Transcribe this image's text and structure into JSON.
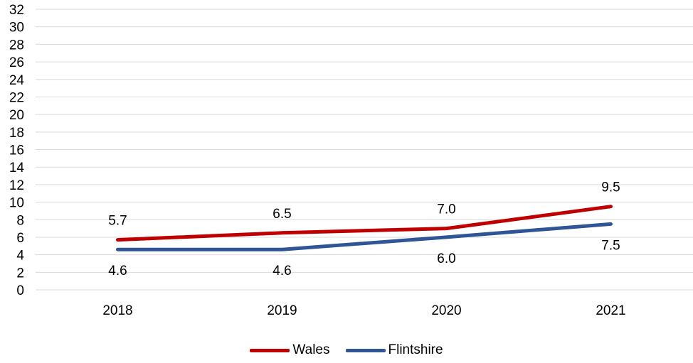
{
  "chart_data": {
    "type": "line",
    "title": "",
    "xlabel": "",
    "ylabel": "",
    "categories": [
      "2018",
      "2019",
      "2020",
      "2021"
    ],
    "ylim": [
      0,
      32
    ],
    "yticks": [
      0,
      2,
      4,
      6,
      8,
      10,
      12,
      14,
      16,
      18,
      20,
      22,
      24,
      26,
      28,
      30,
      32
    ],
    "grid": true,
    "legend_position": "bottom",
    "series": [
      {
        "name": "Wales",
        "color": "#C00000",
        "values": [
          5.7,
          6.5,
          7.0,
          9.5
        ],
        "labels": [
          "5.7",
          "6.5",
          "7.0",
          "9.5"
        ],
        "label_position": "above"
      },
      {
        "name": "Flintshire",
        "color": "#2F5597",
        "values": [
          4.6,
          4.6,
          6.0,
          7.5
        ],
        "labels": [
          "4.6",
          "4.6",
          "6.0",
          "7.5"
        ],
        "label_position": "below"
      }
    ]
  }
}
